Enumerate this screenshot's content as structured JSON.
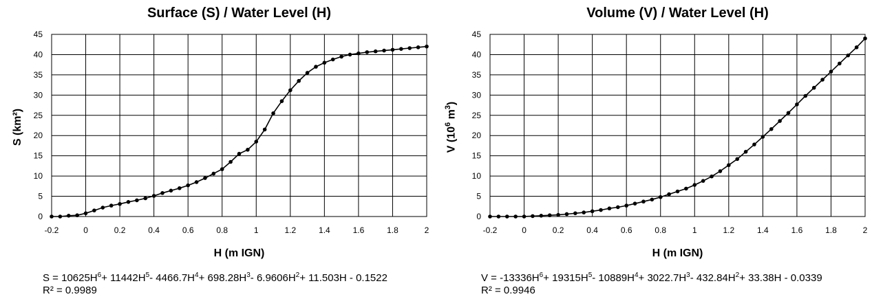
{
  "chart_data": [
    {
      "type": "line",
      "title": "Surface (S) / Water Level (H)",
      "xlabel": "H (m IGN)",
      "ylabel": "S (km²)",
      "xlim": [
        -0.2,
        2
      ],
      "ylim": [
        0,
        45
      ],
      "xticks": [
        "-0.2",
        "0",
        "0.2",
        "0.4",
        "0.6",
        "0.8",
        "1",
        "1.2",
        "1.4",
        "1.6",
        "1.8",
        "2"
      ],
      "yticks": [
        "0",
        "5",
        "10",
        "15",
        "20",
        "25",
        "30",
        "35",
        "40",
        "45"
      ],
      "grid": true,
      "equation": {
        "prefix": "S = 10625H",
        "terms": [
          {
            "sup": "6",
            "text": "+ 11442H"
          },
          {
            "sup": "5",
            "text": "- 4466.7H"
          },
          {
            "sup": "4",
            "text": "+ 698.28H"
          },
          {
            "sup": "3",
            "text": "- 6.9606H"
          },
          {
            "sup": "2",
            "text": "+ 11.503H - 0.1522"
          }
        ]
      },
      "r2": "R² = 0.9989",
      "series": [
        {
          "x": [
            -0.2,
            -0.15,
            -0.1,
            -0.05,
            0,
            0.05,
            0.1,
            0.15,
            0.2,
            0.25,
            0.3,
            0.35,
            0.4,
            0.45,
            0.5,
            0.55,
            0.6,
            0.65,
            0.7,
            0.75,
            0.8,
            0.85,
            0.9,
            0.95,
            1,
            1.05,
            1.1,
            1.15,
            1.2,
            1.25,
            1.3,
            1.35,
            1.4,
            1.45,
            1.5,
            1.55,
            1.6,
            1.65,
            1.7,
            1.75,
            1.8,
            1.85,
            1.9,
            1.95,
            2
          ],
          "y": [
            0,
            0,
            0.2,
            0.3,
            0.8,
            1.5,
            2.2,
            2.7,
            3.1,
            3.6,
            4.0,
            4.5,
            5.1,
            5.8,
            6.4,
            7.0,
            7.7,
            8.5,
            9.5,
            10.6,
            11.7,
            13.5,
            15.5,
            16.5,
            18.5,
            21.5,
            25.5,
            28.5,
            31.2,
            33.5,
            35.5,
            37.0,
            38.0,
            38.8,
            39.5,
            40.0,
            40.3,
            40.6,
            40.8,
            41.0,
            41.2,
            41.4,
            41.6,
            41.8,
            42.0
          ]
        }
      ]
    },
    {
      "type": "line",
      "title": "Volume (V) / Water Level (H)",
      "xlabel": "H (m IGN)",
      "ylabel_parts": {
        "base": "V (10",
        "exp": "6",
        "unit": "m",
        "unit_exp": "3",
        "close": ")"
      },
      "xlim": [
        -0.2,
        2
      ],
      "ylim": [
        0,
        45
      ],
      "xticks": [
        "-0.2",
        "0",
        "0.2",
        "0.4",
        "0.6",
        "0.8",
        "1",
        "1.2",
        "1.4",
        "1.6",
        "1.8",
        "2"
      ],
      "yticks": [
        "0",
        "5",
        "10",
        "15",
        "20",
        "25",
        "30",
        "35",
        "40",
        "45"
      ],
      "grid": true,
      "equation": {
        "prefix": "V = -13336H",
        "terms": [
          {
            "sup": "6",
            "text": "+ 19315H"
          },
          {
            "sup": "5",
            "text": "- 10889H"
          },
          {
            "sup": "4",
            "text": "+ 3022.7H"
          },
          {
            "sup": "3",
            "text": "- 432.84H"
          },
          {
            "sup": "2",
            "text": "+ 33.38H - 0.0339"
          }
        ]
      },
      "r2": "R² = 0.9946",
      "series": [
        {
          "x": [
            -0.2,
            -0.15,
            -0.1,
            -0.05,
            0,
            0.05,
            0.1,
            0.15,
            0.2,
            0.25,
            0.3,
            0.35,
            0.4,
            0.45,
            0.5,
            0.55,
            0.6,
            0.65,
            0.7,
            0.75,
            0.8,
            0.85,
            0.9,
            0.95,
            1,
            1.05,
            1.1,
            1.15,
            1.2,
            1.25,
            1.3,
            1.35,
            1.4,
            1.45,
            1.5,
            1.55,
            1.6,
            1.65,
            1.7,
            1.75,
            1.8,
            1.85,
            1.9,
            1.95,
            2
          ],
          "y": [
            0,
            0,
            0,
            0,
            0,
            0.1,
            0.2,
            0.3,
            0.4,
            0.6,
            0.8,
            1.0,
            1.3,
            1.6,
            2.0,
            2.3,
            2.7,
            3.2,
            3.7,
            4.2,
            4.8,
            5.5,
            6.2,
            6.9,
            7.8,
            8.8,
            9.9,
            11.2,
            12.7,
            14.2,
            16.0,
            17.8,
            19.7,
            21.6,
            23.6,
            25.6,
            27.7,
            29.8,
            31.8,
            33.8,
            35.8,
            37.8,
            39.8,
            41.8,
            44.0
          ]
        }
      ]
    }
  ]
}
